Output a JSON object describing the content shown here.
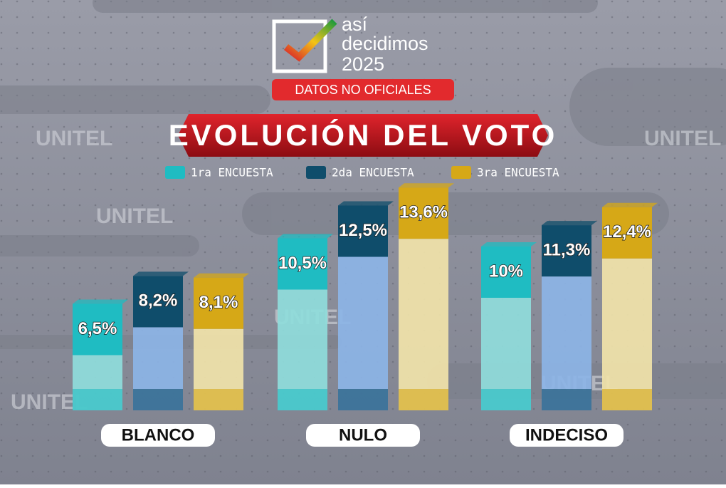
{
  "header": {
    "logo_line1": "así",
    "logo_line2": "decidimos",
    "logo_line3": "2025",
    "badge": "DATOS NO OFICIALES"
  },
  "watermark": "UNITEL",
  "chart_data": {
    "type": "bar",
    "title": "EVOLUCIÓN DEL VOTO",
    "categories": [
      "BLANCO",
      "NULO",
      "INDECISO"
    ],
    "series": [
      {
        "name": "1ra ENCUESTA",
        "color": "#1fbcc2",
        "values": [
          6.5,
          10.5,
          10
        ],
        "value_labels": [
          "6,5%",
          "10,5%",
          "10%"
        ]
      },
      {
        "name": "2da ENCUESTA",
        "color": "#0f4d6b",
        "values": [
          8.2,
          12.5,
          11.3
        ],
        "value_labels": [
          "8,2%",
          "12,5%",
          "11,3%"
        ]
      },
      {
        "name": "3ra ENCUESTA",
        "color": "#d6a817",
        "values": [
          8.1,
          13.6,
          12.4
        ],
        "value_labels": [
          "8,1%",
          "13,6%",
          "12,4%"
        ]
      }
    ]
  }
}
